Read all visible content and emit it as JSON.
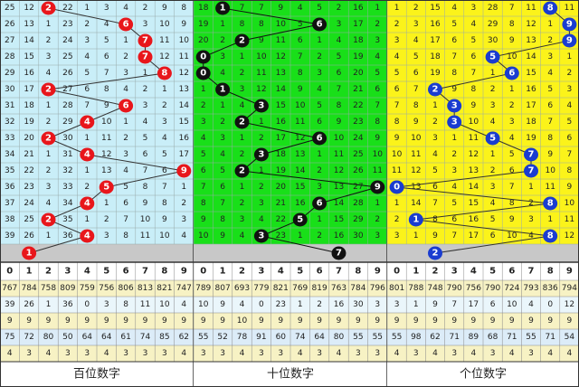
{
  "digits": [
    "0",
    "1",
    "2",
    "3",
    "4",
    "5",
    "6",
    "7",
    "8",
    "9"
  ],
  "panels": [
    {
      "label": "百位数字",
      "hits": [
        2,
        6,
        7,
        7,
        8,
        2,
        6,
        4,
        2,
        4,
        9,
        5,
        4,
        2,
        4
      ],
      "prediction": 1,
      "rows": [
        [
          25,
          12,
          null,
          22,
          1,
          3,
          4,
          2,
          9,
          8
        ],
        [
          26,
          13,
          1,
          23,
          2,
          4,
          null,
          3,
          10,
          9
        ],
        [
          27,
          14,
          2,
          24,
          3,
          5,
          1,
          null,
          11,
          10
        ],
        [
          28,
          15,
          3,
          25,
          4,
          6,
          2,
          null,
          12,
          11
        ],
        [
          29,
          16,
          4,
          26,
          5,
          7,
          3,
          1,
          null,
          12
        ],
        [
          30,
          17,
          null,
          27,
          6,
          8,
          4,
          2,
          1,
          13
        ],
        [
          31,
          18,
          1,
          28,
          7,
          9,
          null,
          3,
          2,
          14
        ],
        [
          32,
          19,
          2,
          29,
          null,
          10,
          1,
          4,
          3,
          15
        ],
        [
          33,
          20,
          null,
          30,
          1,
          11,
          2,
          5,
          4,
          16
        ],
        [
          34,
          21,
          1,
          31,
          null,
          12,
          3,
          6,
          5,
          17
        ],
        [
          35,
          22,
          2,
          32,
          1,
          13,
          4,
          7,
          6,
          null
        ],
        [
          36,
          23,
          3,
          33,
          2,
          null,
          5,
          8,
          7,
          1
        ],
        [
          37,
          24,
          4,
          34,
          null,
          1,
          6,
          9,
          8,
          2
        ],
        [
          38,
          25,
          null,
          35,
          1,
          2,
          7,
          10,
          9,
          3
        ],
        [
          39,
          26,
          1,
          36,
          null,
          3,
          8,
          11,
          10,
          4
        ]
      ],
      "stats": [
        [
          767,
          784,
          758,
          809,
          759,
          756,
          806,
          813,
          821,
          747
        ],
        [
          39,
          26,
          1,
          36,
          0,
          3,
          8,
          11,
          10,
          4
        ],
        [
          9,
          9,
          9,
          9,
          9,
          9,
          9,
          9,
          9,
          9
        ],
        [
          75,
          72,
          80,
          50,
          64,
          64,
          61,
          74,
          85,
          62
        ],
        [
          4,
          3,
          4,
          3,
          3,
          4,
          3,
          3,
          3,
          4
        ]
      ]
    },
    {
      "label": "十位数字",
      "hits": [
        1,
        6,
        2,
        0,
        0,
        1,
        3,
        2,
        6,
        3,
        2,
        9,
        6,
        5,
        3
      ],
      "prediction": 7,
      "rows": [
        [
          18,
          null,
          7,
          7,
          9,
          4,
          5,
          2,
          16,
          1
        ],
        [
          19,
          1,
          8,
          8,
          10,
          5,
          null,
          3,
          17,
          2
        ],
        [
          20,
          2,
          null,
          9,
          11,
          6,
          1,
          4,
          18,
          3
        ],
        [
          null,
          3,
          1,
          10,
          12,
          7,
          2,
          5,
          19,
          4
        ],
        [
          null,
          4,
          2,
          11,
          13,
          8,
          3,
          6,
          20,
          5
        ],
        [
          1,
          null,
          3,
          12,
          14,
          9,
          4,
          7,
          21,
          6
        ],
        [
          2,
          1,
          4,
          null,
          15,
          10,
          5,
          8,
          22,
          7
        ],
        [
          3,
          2,
          null,
          1,
          16,
          11,
          6,
          9,
          23,
          8
        ],
        [
          4,
          3,
          1,
          2,
          17,
          12,
          null,
          10,
          24,
          9
        ],
        [
          5,
          4,
          2,
          null,
          18,
          13,
          1,
          11,
          25,
          10
        ],
        [
          6,
          5,
          null,
          1,
          19,
          14,
          2,
          12,
          26,
          11
        ],
        [
          7,
          6,
          1,
          2,
          20,
          15,
          3,
          13,
          27,
          null
        ],
        [
          8,
          7,
          2,
          3,
          21,
          16,
          null,
          14,
          28,
          1
        ],
        [
          9,
          8,
          3,
          4,
          22,
          null,
          1,
          15,
          29,
          2
        ],
        [
          10,
          9,
          4,
          null,
          23,
          1,
          2,
          16,
          30,
          3
        ]
      ],
      "stats": [
        [
          789,
          807,
          693,
          779,
          821,
          769,
          819,
          763,
          784,
          796
        ],
        [
          10,
          9,
          4,
          0,
          23,
          1,
          2,
          16,
          30,
          3
        ],
        [
          9,
          9,
          10,
          9,
          9,
          9,
          9,
          9,
          9,
          9
        ],
        [
          55,
          52,
          78,
          91,
          60,
          74,
          64,
          80,
          55,
          55
        ],
        [
          3,
          3,
          4,
          3,
          3,
          4,
          3,
          4,
          3,
          3
        ]
      ]
    },
    {
      "label": "个位数字",
      "hits": [
        8,
        9,
        9,
        5,
        6,
        2,
        3,
        3,
        5,
        7,
        7,
        0,
        8,
        1,
        8
      ],
      "prediction": 2,
      "rows": [
        [
          1,
          2,
          15,
          4,
          3,
          28,
          7,
          11,
          null,
          11
        ],
        [
          2,
          3,
          16,
          5,
          4,
          29,
          8,
          12,
          1,
          null
        ],
        [
          3,
          4,
          17,
          6,
          5,
          30,
          9,
          13,
          2,
          null
        ],
        [
          4,
          5,
          18,
          7,
          6,
          null,
          10,
          14,
          3,
          1
        ],
        [
          5,
          6,
          19,
          8,
          7,
          1,
          null,
          15,
          4,
          2
        ],
        [
          6,
          7,
          null,
          9,
          8,
          2,
          1,
          16,
          5,
          3
        ],
        [
          7,
          8,
          1,
          null,
          9,
          3,
          2,
          17,
          6,
          4
        ],
        [
          8,
          9,
          2,
          null,
          10,
          4,
          3,
          18,
          7,
          5
        ],
        [
          9,
          10,
          3,
          1,
          11,
          null,
          4,
          19,
          8,
          6
        ],
        [
          10,
          11,
          4,
          2,
          12,
          1,
          5,
          null,
          9,
          7
        ],
        [
          11,
          12,
          5,
          3,
          13,
          2,
          6,
          null,
          10,
          8
        ],
        [
          null,
          13,
          6,
          4,
          14,
          3,
          7,
          1,
          11,
          9
        ],
        [
          1,
          14,
          7,
          5,
          15,
          4,
          8,
          2,
          null,
          10
        ],
        [
          2,
          null,
          8,
          6,
          16,
          5,
          9,
          3,
          1,
          11
        ],
        [
          3,
          1,
          9,
          7,
          17,
          6,
          10,
          4,
          null,
          12
        ]
      ],
      "stats": [
        [
          801,
          788,
          748,
          790,
          756,
          790,
          724,
          793,
          836,
          794
        ],
        [
          3,
          1,
          9,
          7,
          17,
          6,
          10,
          4,
          0,
          12
        ],
        [
          9,
          9,
          9,
          9,
          9,
          9,
          9,
          9,
          9,
          9
        ],
        [
          55,
          98,
          62,
          71,
          89,
          68,
          71,
          55,
          71,
          54
        ],
        [
          4,
          3,
          4,
          3,
          4,
          3,
          4,
          3,
          4,
          4
        ]
      ]
    }
  ]
}
